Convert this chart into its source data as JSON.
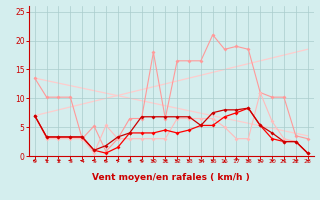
{
  "series": {
    "light_pink_upper": {
      "x": [
        0,
        1,
        2,
        3,
        4,
        5,
        6,
        7,
        8,
        9,
        10,
        11,
        12,
        13,
        14,
        15,
        16,
        17,
        18,
        19,
        20,
        21,
        22,
        23
      ],
      "y": [
        13.5,
        10.2,
        10.2,
        10.2,
        3.0,
        5.2,
        0.8,
        3.0,
        6.5,
        6.5,
        18.0,
        6.5,
        16.5,
        16.5,
        16.5,
        21.0,
        18.5,
        19.0,
        18.5,
        11.0,
        10.2,
        10.2,
        3.5,
        3.0
      ],
      "color": "#ff9999",
      "marker": "D",
      "markersize": 2,
      "linewidth": 0.8
    },
    "light_pink_lower": {
      "x": [
        0,
        1,
        2,
        3,
        4,
        5,
        6,
        7,
        8,
        9,
        10,
        11,
        12,
        13,
        14,
        15,
        16,
        17,
        18,
        19,
        20,
        21,
        22,
        23
      ],
      "y": [
        7.0,
        3.0,
        3.0,
        3.0,
        3.0,
        0.5,
        5.3,
        3.0,
        3.0,
        3.0,
        3.0,
        3.0,
        6.5,
        6.5,
        6.5,
        6.5,
        5.0,
        3.0,
        3.0,
        11.0,
        6.0,
        3.0,
        2.5,
        0.5
      ],
      "color": "#ffbbbb",
      "marker": "D",
      "markersize": 2,
      "linewidth": 0.8
    },
    "dark_red_upper": {
      "x": [
        0,
        1,
        2,
        3,
        4,
        5,
        6,
        7,
        8,
        9,
        10,
        11,
        12,
        13,
        14,
        15,
        16,
        17,
        18,
        19,
        20,
        21,
        22,
        23
      ],
      "y": [
        7.0,
        3.3,
        3.3,
        3.3,
        3.3,
        1.0,
        1.8,
        3.3,
        4.0,
        6.8,
        6.8,
        6.8,
        6.8,
        6.8,
        5.3,
        7.5,
        8.0,
        8.0,
        8.3,
        5.3,
        4.0,
        2.5,
        2.5,
        0.5
      ],
      "color": "#cc0000",
      "marker": "D",
      "markersize": 2,
      "linewidth": 0.9
    },
    "dark_red_lower": {
      "x": [
        0,
        1,
        2,
        3,
        4,
        5,
        6,
        7,
        8,
        9,
        10,
        11,
        12,
        13,
        14,
        15,
        16,
        17,
        18,
        19,
        20,
        21,
        22,
        23
      ],
      "y": [
        7.0,
        3.3,
        3.3,
        3.3,
        3.3,
        1.0,
        0.5,
        1.5,
        4.0,
        4.0,
        4.0,
        4.5,
        4.0,
        4.5,
        5.3,
        5.3,
        6.8,
        7.5,
        8.3,
        5.3,
        3.0,
        2.5,
        2.5,
        0.5
      ],
      "color": "#ff0000",
      "marker": "D",
      "markersize": 2,
      "linewidth": 0.9
    },
    "trend_up": {
      "x": [
        0,
        23
      ],
      "y": [
        7.0,
        18.5
      ],
      "color": "#ffcccc",
      "linewidth": 0.9
    },
    "trend_down": {
      "x": [
        0,
        23
      ],
      "y": [
        13.5,
        3.5
      ],
      "color": "#ffcccc",
      "linewidth": 0.9
    }
  },
  "wind_arrows": {
    "x": [
      0,
      1,
      2,
      3,
      4,
      5,
      6,
      7,
      8,
      9,
      10,
      11,
      12,
      13,
      14,
      15,
      16,
      17,
      18,
      19,
      20,
      21,
      22,
      23
    ],
    "angles": [
      270,
      225,
      225,
      270,
      270,
      270,
      270,
      270,
      270,
      270,
      270,
      225,
      270,
      270,
      225,
      270,
      180,
      0,
      270,
      270,
      225,
      270,
      225,
      225
    ]
  },
  "xlabel": "Vent moyen/en rafales ( km/h )",
  "xlim": [
    -0.5,
    23.5
  ],
  "ylim": [
    0,
    26
  ],
  "yticks": [
    0,
    5,
    10,
    15,
    20,
    25
  ],
  "xticks": [
    0,
    1,
    2,
    3,
    4,
    5,
    6,
    7,
    8,
    9,
    10,
    11,
    12,
    13,
    14,
    15,
    16,
    17,
    18,
    19,
    20,
    21,
    22,
    23
  ],
  "bg_color": "#d4eeee",
  "grid_color": "#aacccc",
  "axis_color": "#cc0000",
  "text_color": "#cc0000",
  "arrow_color": "#cc0000"
}
